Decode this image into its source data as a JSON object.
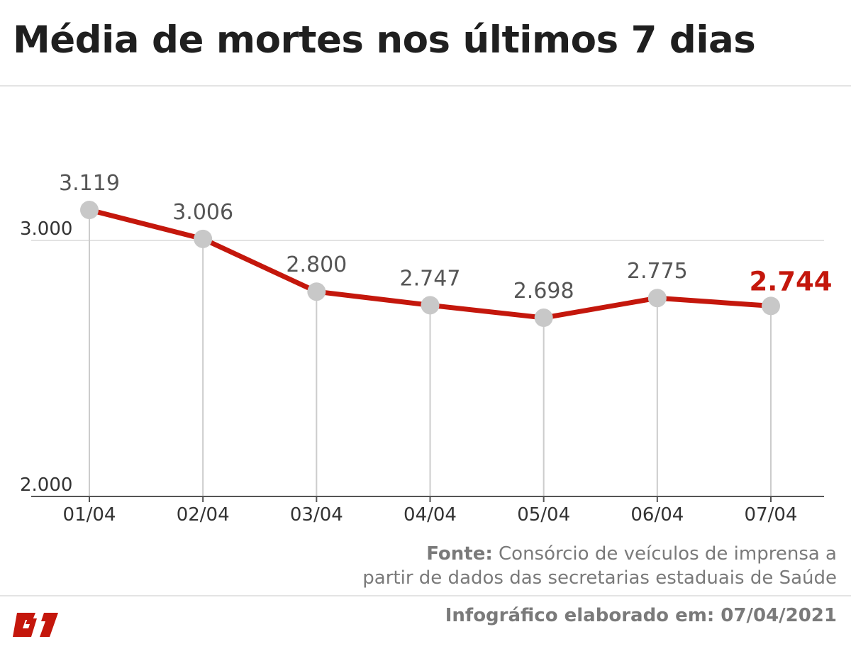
{
  "header": {
    "title": "Média de mortes nos últimos 7 dias"
  },
  "chart_data": {
    "type": "line",
    "title": "Média de mortes nos últimos 7 dias",
    "xlabel": "",
    "ylabel": "",
    "categories": [
      "01/04",
      "02/04",
      "03/04",
      "04/04",
      "05/04",
      "06/04",
      "07/04"
    ],
    "values": [
      3119,
      3006,
      2800,
      2747,
      2698,
      2775,
      2744
    ],
    "value_labels": [
      "3.119",
      "3.006",
      "2.800",
      "2.747",
      "2.698",
      "2.775",
      "2.744"
    ],
    "highlight_index": 6,
    "ylim": [
      2000,
      3000
    ],
    "yticks": [
      2000,
      3000
    ],
    "ytick_labels": [
      "2.000",
      "3.000"
    ],
    "grid": true,
    "colors": {
      "line": "#c4170c",
      "marker": "#c8c8c8",
      "highlight_label": "#c4170c",
      "label": "#555555",
      "gridline": "#cccccc",
      "axis": "#555555"
    }
  },
  "footer": {
    "source_label": "Fonte:",
    "source_line1": " Consórcio de veículos de imprensa a",
    "source_line2": "partir de dados das secretarias estaduais de Saúde",
    "credit": "Infográfico elaborado em: 07/04/2021",
    "logo_text": "G1",
    "logo_icon": "g1-logo-icon",
    "logo_color": "#c4170c"
  }
}
